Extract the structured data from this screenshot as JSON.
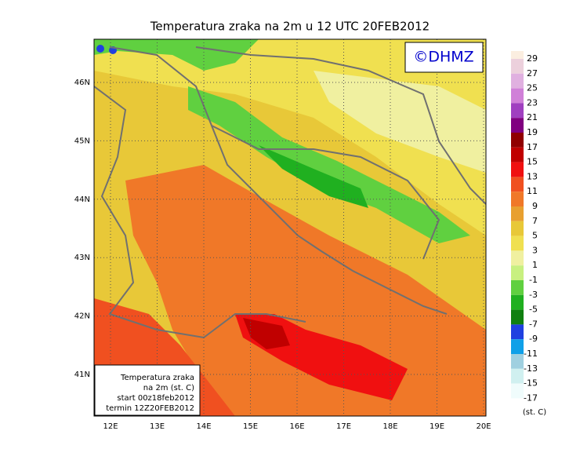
{
  "map": {
    "title": "Temperatura zraka na 2m u 12 UTC 20FEB2012",
    "copyright": "©DHMZ",
    "lon_ticks": [
      {
        "value": 12,
        "label": "12E"
      },
      {
        "value": 13,
        "label": "13E"
      },
      {
        "value": 14,
        "label": "14E"
      },
      {
        "value": 15,
        "label": "15E"
      },
      {
        "value": 16,
        "label": "16E"
      },
      {
        "value": 17,
        "label": "17E"
      },
      {
        "value": 18,
        "label": "18E"
      },
      {
        "value": 19,
        "label": "19E"
      },
      {
        "value": 20,
        "label": "20E"
      }
    ],
    "lat_ticks": [
      {
        "value": 46,
        "label": "46N"
      },
      {
        "value": 45,
        "label": "45N"
      },
      {
        "value": 44,
        "label": "44N"
      },
      {
        "value": 43,
        "label": "43N"
      },
      {
        "value": 42,
        "label": "42N"
      },
      {
        "value": 41,
        "label": "41N"
      }
    ],
    "colorbar": {
      "levels": [
        29,
        27,
        25,
        23,
        21,
        19,
        17,
        15,
        13,
        11,
        9,
        7,
        5,
        3,
        1,
        -1,
        -3,
        -5,
        -7,
        -9,
        -11,
        -13,
        -15,
        -17
      ],
      "colors": [
        "#fbeee0",
        "#ecd0dc",
        "#e0b0e0",
        "#d080d8",
        "#a040c0",
        "#800080",
        "#900000",
        "#c00000",
        "#f01010",
        "#f05020",
        "#f07828",
        "#e8a030",
        "#e8c838",
        "#f0e050",
        "#f0f0a0",
        "#c8f080",
        "#60d040",
        "#20b020",
        "#108010",
        "#2040e0",
        "#10a0e8",
        "#a0d0e0",
        "#d0f0f0",
        "#f0fcfc"
      ],
      "unit": "(st. C)"
    },
    "info_box": [
      "Temperatura zraka",
      "na 2m (st. C)",
      "start 00z18feb2012",
      "termin 12Z20FEB2012"
    ]
  }
}
